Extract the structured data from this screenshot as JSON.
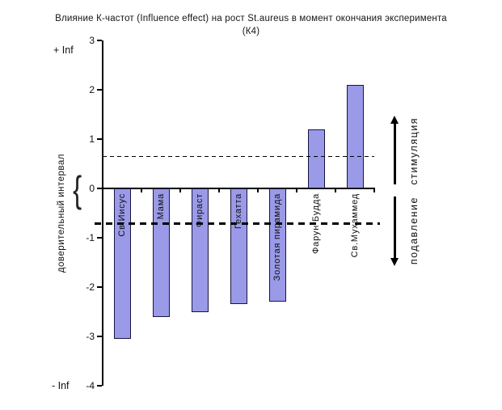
{
  "title": {
    "line1": "Влияние К-частот (Influence effect) на рост St.aureus в момент окончания эксперимента",
    "line2": "(К4)"
  },
  "y_axis": {
    "label": "доверительный интервал",
    "plus_inf": "+ Inf",
    "minus_inf": "- Inf"
  },
  "right_annotations": {
    "up": "стимуляция",
    "down": "подавление"
  },
  "chart_data": {
    "type": "bar",
    "title": "Влияние К-частот (Influence effect) на рост St.aureus в момент окончания эксперимента (К4)",
    "categories": [
      "Св.Иисус",
      "Мама",
      "Фираст",
      "Гехатта",
      "Золотая пирамида",
      "Фарун Будда",
      "Св.Мухаммед"
    ],
    "values": [
      -3.05,
      -2.6,
      -2.5,
      -2.35,
      -2.3,
      1.2,
      2.1
    ],
    "ylabel": "доверительный интервал",
    "xlabel": "",
    "ylim": [
      -4,
      3
    ],
    "yticks": [
      3,
      2,
      1,
      0,
      -1,
      -2,
      -3,
      -4
    ],
    "ytick_extremes": {
      "top": "+ Inf",
      "bottom": "- Inf"
    },
    "reference_lines": [
      {
        "name": "upper-confidence-bound",
        "value": 0.65,
        "style": "thin-dashed"
      },
      {
        "name": "lower-confidence-bound",
        "value": -0.72,
        "style": "thick-dashed"
      }
    ],
    "zones": {
      "above_upper_bound": "стимуляция",
      "below_lower_bound": "подавление"
    },
    "bar_color": "#9a9ae8",
    "bar_border_color": "#16163f",
    "grid": false,
    "legend": false
  }
}
